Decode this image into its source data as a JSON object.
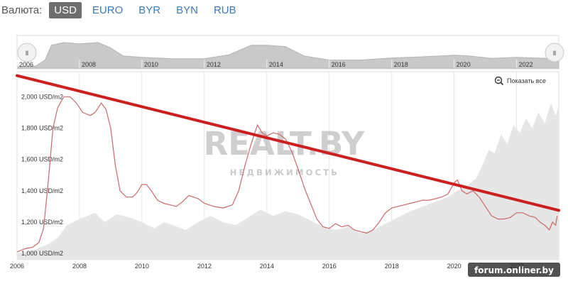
{
  "currency": {
    "label": "Валюта:",
    "options": [
      "USD",
      "EURO",
      "BYR",
      "BYN",
      "RUB"
    ],
    "selected": "USD"
  },
  "navigator": {
    "years": [
      "2006",
      "2008",
      "2010",
      "2012",
      "2014",
      "2016",
      "2018",
      "2020",
      "2022"
    ],
    "handle_glyph": "ll"
  },
  "show_all_label": "Показать все",
  "watermark": {
    "main": "REALT.BY",
    "sub": "НЕДВИЖИМОСТЬ"
  },
  "credit": "forum.onliner.by",
  "colors": {
    "price_line": "#c9696b",
    "trend_line": "#cc1f1f",
    "volume_area": "#e6e6e6",
    "navigator_area": "#c9c9c9",
    "grid": "#e6e6e6",
    "active_button": "#6e6e6e",
    "link": "#3d7ab8"
  },
  "chart_data": {
    "type": "line",
    "x_ticks": [
      "2006",
      "2008",
      "2010",
      "2012",
      "2014",
      "2016",
      "2018",
      "2020",
      "2022"
    ],
    "y_ticks": [
      "1,000 USD/m2",
      "1,200 USD/m2",
      "1,400 USD/m2",
      "1,600 USD/m2",
      "1,800 USD/m2",
      "2,000 USD/m2"
    ],
    "xlim": [
      2006.0,
      2023.35
    ],
    "ylim": [
      960,
      2160
    ],
    "grid": true,
    "series": [
      {
        "kind": "price",
        "points": [
          [
            2006.0,
            1010
          ],
          [
            2006.25,
            1030
          ],
          [
            2006.5,
            1040
          ],
          [
            2006.7,
            1070
          ],
          [
            2006.85,
            1160
          ],
          [
            2007.0,
            1460
          ],
          [
            2007.15,
            1800
          ],
          [
            2007.3,
            1930
          ],
          [
            2007.5,
            2000
          ],
          [
            2007.7,
            2000
          ],
          [
            2007.9,
            1960
          ],
          [
            2008.1,
            1900
          ],
          [
            2008.35,
            1880
          ],
          [
            2008.5,
            1900
          ],
          [
            2008.7,
            1960
          ],
          [
            2008.85,
            1920
          ],
          [
            2009.0,
            1800
          ],
          [
            2009.15,
            1560
          ],
          [
            2009.3,
            1400
          ],
          [
            2009.5,
            1360
          ],
          [
            2009.7,
            1360
          ],
          [
            2009.85,
            1390
          ],
          [
            2010.0,
            1440
          ],
          [
            2010.15,
            1440
          ],
          [
            2010.3,
            1400
          ],
          [
            2010.5,
            1340
          ],
          [
            2010.7,
            1320
          ],
          [
            2010.9,
            1310
          ],
          [
            2011.1,
            1300
          ],
          [
            2011.3,
            1330
          ],
          [
            2011.5,
            1370
          ],
          [
            2011.8,
            1350
          ],
          [
            2012.0,
            1320
          ],
          [
            2012.3,
            1300
          ],
          [
            2012.6,
            1290
          ],
          [
            2012.9,
            1310
          ],
          [
            2013.1,
            1400
          ],
          [
            2013.3,
            1560
          ],
          [
            2013.5,
            1700
          ],
          [
            2013.7,
            1820
          ],
          [
            2013.85,
            1770
          ],
          [
            2014.0,
            1750
          ],
          [
            2014.2,
            1770
          ],
          [
            2014.4,
            1760
          ],
          [
            2014.6,
            1730
          ],
          [
            2014.8,
            1650
          ],
          [
            2015.0,
            1540
          ],
          [
            2015.2,
            1420
          ],
          [
            2015.4,
            1320
          ],
          [
            2015.6,
            1220
          ],
          [
            2015.8,
            1170
          ],
          [
            2016.0,
            1160
          ],
          [
            2016.2,
            1190
          ],
          [
            2016.4,
            1170
          ],
          [
            2016.6,
            1180
          ],
          [
            2016.8,
            1150
          ],
          [
            2017.0,
            1140
          ],
          [
            2017.2,
            1130
          ],
          [
            2017.4,
            1150
          ],
          [
            2017.6,
            1200
          ],
          [
            2017.8,
            1260
          ],
          [
            2018.0,
            1290
          ],
          [
            2018.2,
            1300
          ],
          [
            2018.4,
            1310
          ],
          [
            2018.6,
            1320
          ],
          [
            2018.8,
            1330
          ],
          [
            2019.0,
            1340
          ],
          [
            2019.2,
            1340
          ],
          [
            2019.4,
            1350
          ],
          [
            2019.6,
            1360
          ],
          [
            2019.8,
            1380
          ],
          [
            2020.0,
            1450
          ],
          [
            2020.1,
            1470
          ],
          [
            2020.25,
            1400
          ],
          [
            2020.4,
            1380
          ],
          [
            2020.6,
            1400
          ],
          [
            2020.8,
            1360
          ],
          [
            2021.0,
            1300
          ],
          [
            2021.2,
            1240
          ],
          [
            2021.4,
            1220
          ],
          [
            2021.6,
            1220
          ],
          [
            2021.8,
            1230
          ],
          [
            2022.0,
            1260
          ],
          [
            2022.2,
            1260
          ],
          [
            2022.4,
            1240
          ],
          [
            2022.6,
            1230
          ],
          [
            2022.75,
            1200
          ],
          [
            2022.9,
            1180
          ],
          [
            2023.05,
            1150
          ],
          [
            2023.15,
            1200
          ],
          [
            2023.25,
            1180
          ],
          [
            2023.3,
            1240
          ]
        ]
      },
      {
        "kind": "volume",
        "points": [
          [
            2006.0,
            1000
          ],
          [
            2006.5,
            1020
          ],
          [
            2007.0,
            1060
          ],
          [
            2007.3,
            1100
          ],
          [
            2007.6,
            1180
          ],
          [
            2008.0,
            1220
          ],
          [
            2008.5,
            1260
          ],
          [
            2008.8,
            1200
          ],
          [
            2009.2,
            1250
          ],
          [
            2009.6,
            1230
          ],
          [
            2010.0,
            1200
          ],
          [
            2010.4,
            1160
          ],
          [
            2010.7,
            1200
          ],
          [
            2011.0,
            1180
          ],
          [
            2011.4,
            1150
          ],
          [
            2011.8,
            1200
          ],
          [
            2012.2,
            1240
          ],
          [
            2012.6,
            1200
          ],
          [
            2013.0,
            1180
          ],
          [
            2013.4,
            1230
          ],
          [
            2013.8,
            1280
          ],
          [
            2014.2,
            1240
          ],
          [
            2014.6,
            1270
          ],
          [
            2015.0,
            1250
          ],
          [
            2015.4,
            1210
          ],
          [
            2015.8,
            1170
          ],
          [
            2016.2,
            1150
          ],
          [
            2016.6,
            1170
          ],
          [
            2017.0,
            1130
          ],
          [
            2017.4,
            1150
          ],
          [
            2017.8,
            1190
          ],
          [
            2018.2,
            1230
          ],
          [
            2018.6,
            1270
          ],
          [
            2019.0,
            1300
          ],
          [
            2019.4,
            1330
          ],
          [
            2019.8,
            1360
          ],
          [
            2020.1,
            1400
          ],
          [
            2020.4,
            1430
          ],
          [
            2020.7,
            1480
          ],
          [
            2020.9,
            1560
          ],
          [
            2021.1,
            1660
          ],
          [
            2021.3,
            1640
          ],
          [
            2021.5,
            1760
          ],
          [
            2021.7,
            1700
          ],
          [
            2021.9,
            1820
          ],
          [
            2022.1,
            1770
          ],
          [
            2022.3,
            1860
          ],
          [
            2022.5,
            1800
          ],
          [
            2022.7,
            1900
          ],
          [
            2022.9,
            1830
          ],
          [
            2023.1,
            1960
          ],
          [
            2023.25,
            1880
          ],
          [
            2023.35,
            1940
          ]
        ]
      },
      {
        "kind": "trend",
        "points": [
          [
            2006.0,
            2135
          ],
          [
            2023.35,
            1275
          ]
        ]
      }
    ],
    "navigator": {
      "points": [
        [
          2006.0,
          0.05
        ],
        [
          2006.6,
          0.08
        ],
        [
          2006.9,
          0.3
        ],
        [
          2007.1,
          0.85
        ],
        [
          2007.5,
          0.95
        ],
        [
          2008.0,
          0.9
        ],
        [
          2008.6,
          0.95
        ],
        [
          2009.0,
          0.75
        ],
        [
          2009.4,
          0.45
        ],
        [
          2010.0,
          0.4
        ],
        [
          2011.0,
          0.35
        ],
        [
          2012.0,
          0.35
        ],
        [
          2012.8,
          0.5
        ],
        [
          2013.5,
          0.85
        ],
        [
          2014.0,
          0.85
        ],
        [
          2014.6,
          0.8
        ],
        [
          2015.2,
          0.45
        ],
        [
          2016.0,
          0.3
        ],
        [
          2017.0,
          0.3
        ],
        [
          2018.0,
          0.38
        ],
        [
          2019.0,
          0.42
        ],
        [
          2020.0,
          0.48
        ],
        [
          2020.5,
          0.45
        ],
        [
          2021.2,
          0.36
        ],
        [
          2022.0,
          0.4
        ],
        [
          2023.0,
          0.36
        ],
        [
          2023.35,
          0.42
        ]
      ]
    }
  }
}
